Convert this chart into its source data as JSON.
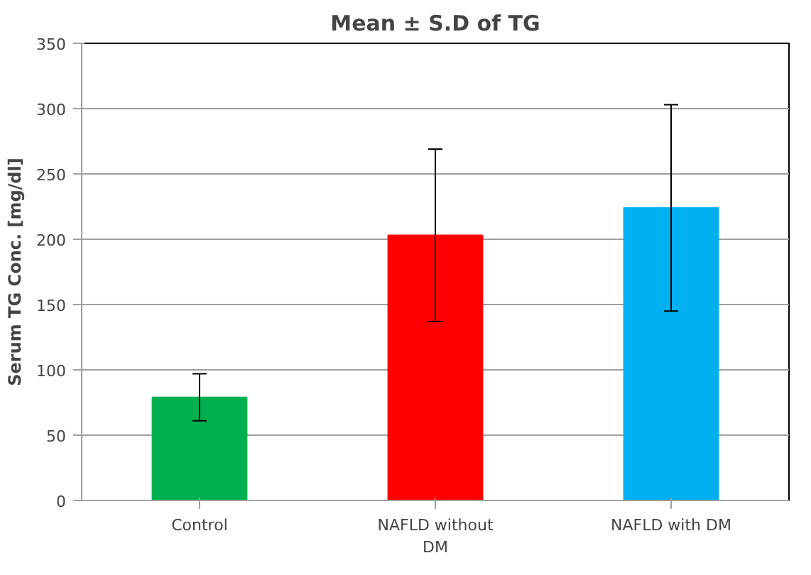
{
  "chart_data": {
    "type": "bar",
    "title": "Mean ± S.D of TG",
    "ylabel": "Serum TG Conc. [mg/dl]",
    "categories": [
      "Control",
      "NAFLD without DM",
      "NAFLD with DM"
    ],
    "values": [
      79,
      203,
      224
    ],
    "colors": [
      "#00b050",
      "#ff0000",
      "#00b0f0"
    ],
    "errors": [
      18,
      66,
      79
    ],
    "ylim": [
      0,
      350
    ],
    "yticks": [
      0,
      50,
      100,
      150,
      200,
      250,
      300,
      350
    ],
    "grid": "y"
  }
}
